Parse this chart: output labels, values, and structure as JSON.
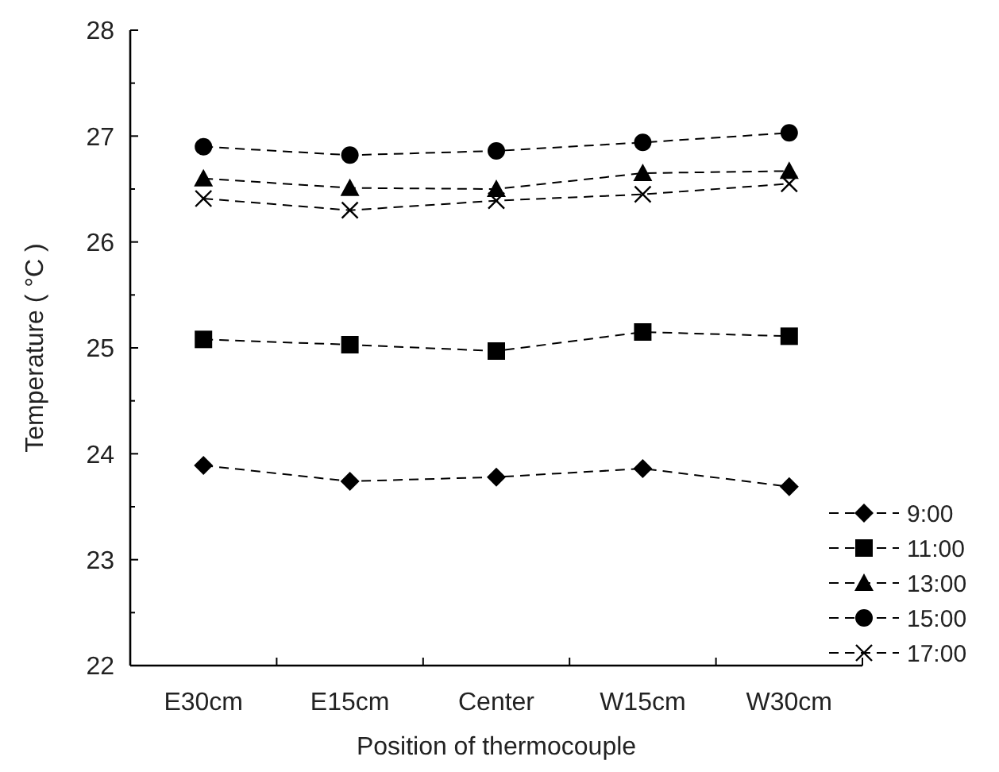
{
  "chart_data": {
    "type": "line",
    "xlabel": "Position of thermocouple",
    "ylabel": "Temperature ( °C )",
    "categories": [
      "E30cm",
      "E15cm",
      "Center",
      "W15cm",
      "W30cm"
    ],
    "series": [
      {
        "name": "9:00",
        "color": "#000000",
        "marker": "diamond",
        "values": [
          23.89,
          23.74,
          23.78,
          23.86,
          23.69
        ]
      },
      {
        "name": "11:00",
        "color": "#000000",
        "marker": "square",
        "values": [
          25.08,
          25.03,
          24.97,
          25.15,
          25.11
        ]
      },
      {
        "name": "13:00",
        "color": "#000000",
        "marker": "triangle",
        "values": [
          26.6,
          26.51,
          26.5,
          26.65,
          26.67
        ]
      },
      {
        "name": "15:00",
        "color": "#000000",
        "marker": "circle",
        "values": [
          26.9,
          26.82,
          26.86,
          26.94,
          27.03
        ]
      },
      {
        "name": "17:00",
        "color": "#000000",
        "marker": "cross",
        "values": [
          26.41,
          26.3,
          26.39,
          26.45,
          26.55
        ]
      }
    ],
    "ylim": [
      22,
      28
    ],
    "yticks": [
      22,
      {
        "value": 22.5,
        "label": null
      },
      23,
      {
        "value": 23.5,
        "label": null
      },
      24,
      {
        "value": 24.5,
        "label": null
      },
      25,
      {
        "value": 25.5,
        "label": null
      },
      26,
      {
        "value": 26.5,
        "label": null
      },
      27,
      {
        "value": 27.5,
        "label": null
      },
      28
    ],
    "line_style": "dashed",
    "grid": false,
    "legend": "bottom right"
  }
}
